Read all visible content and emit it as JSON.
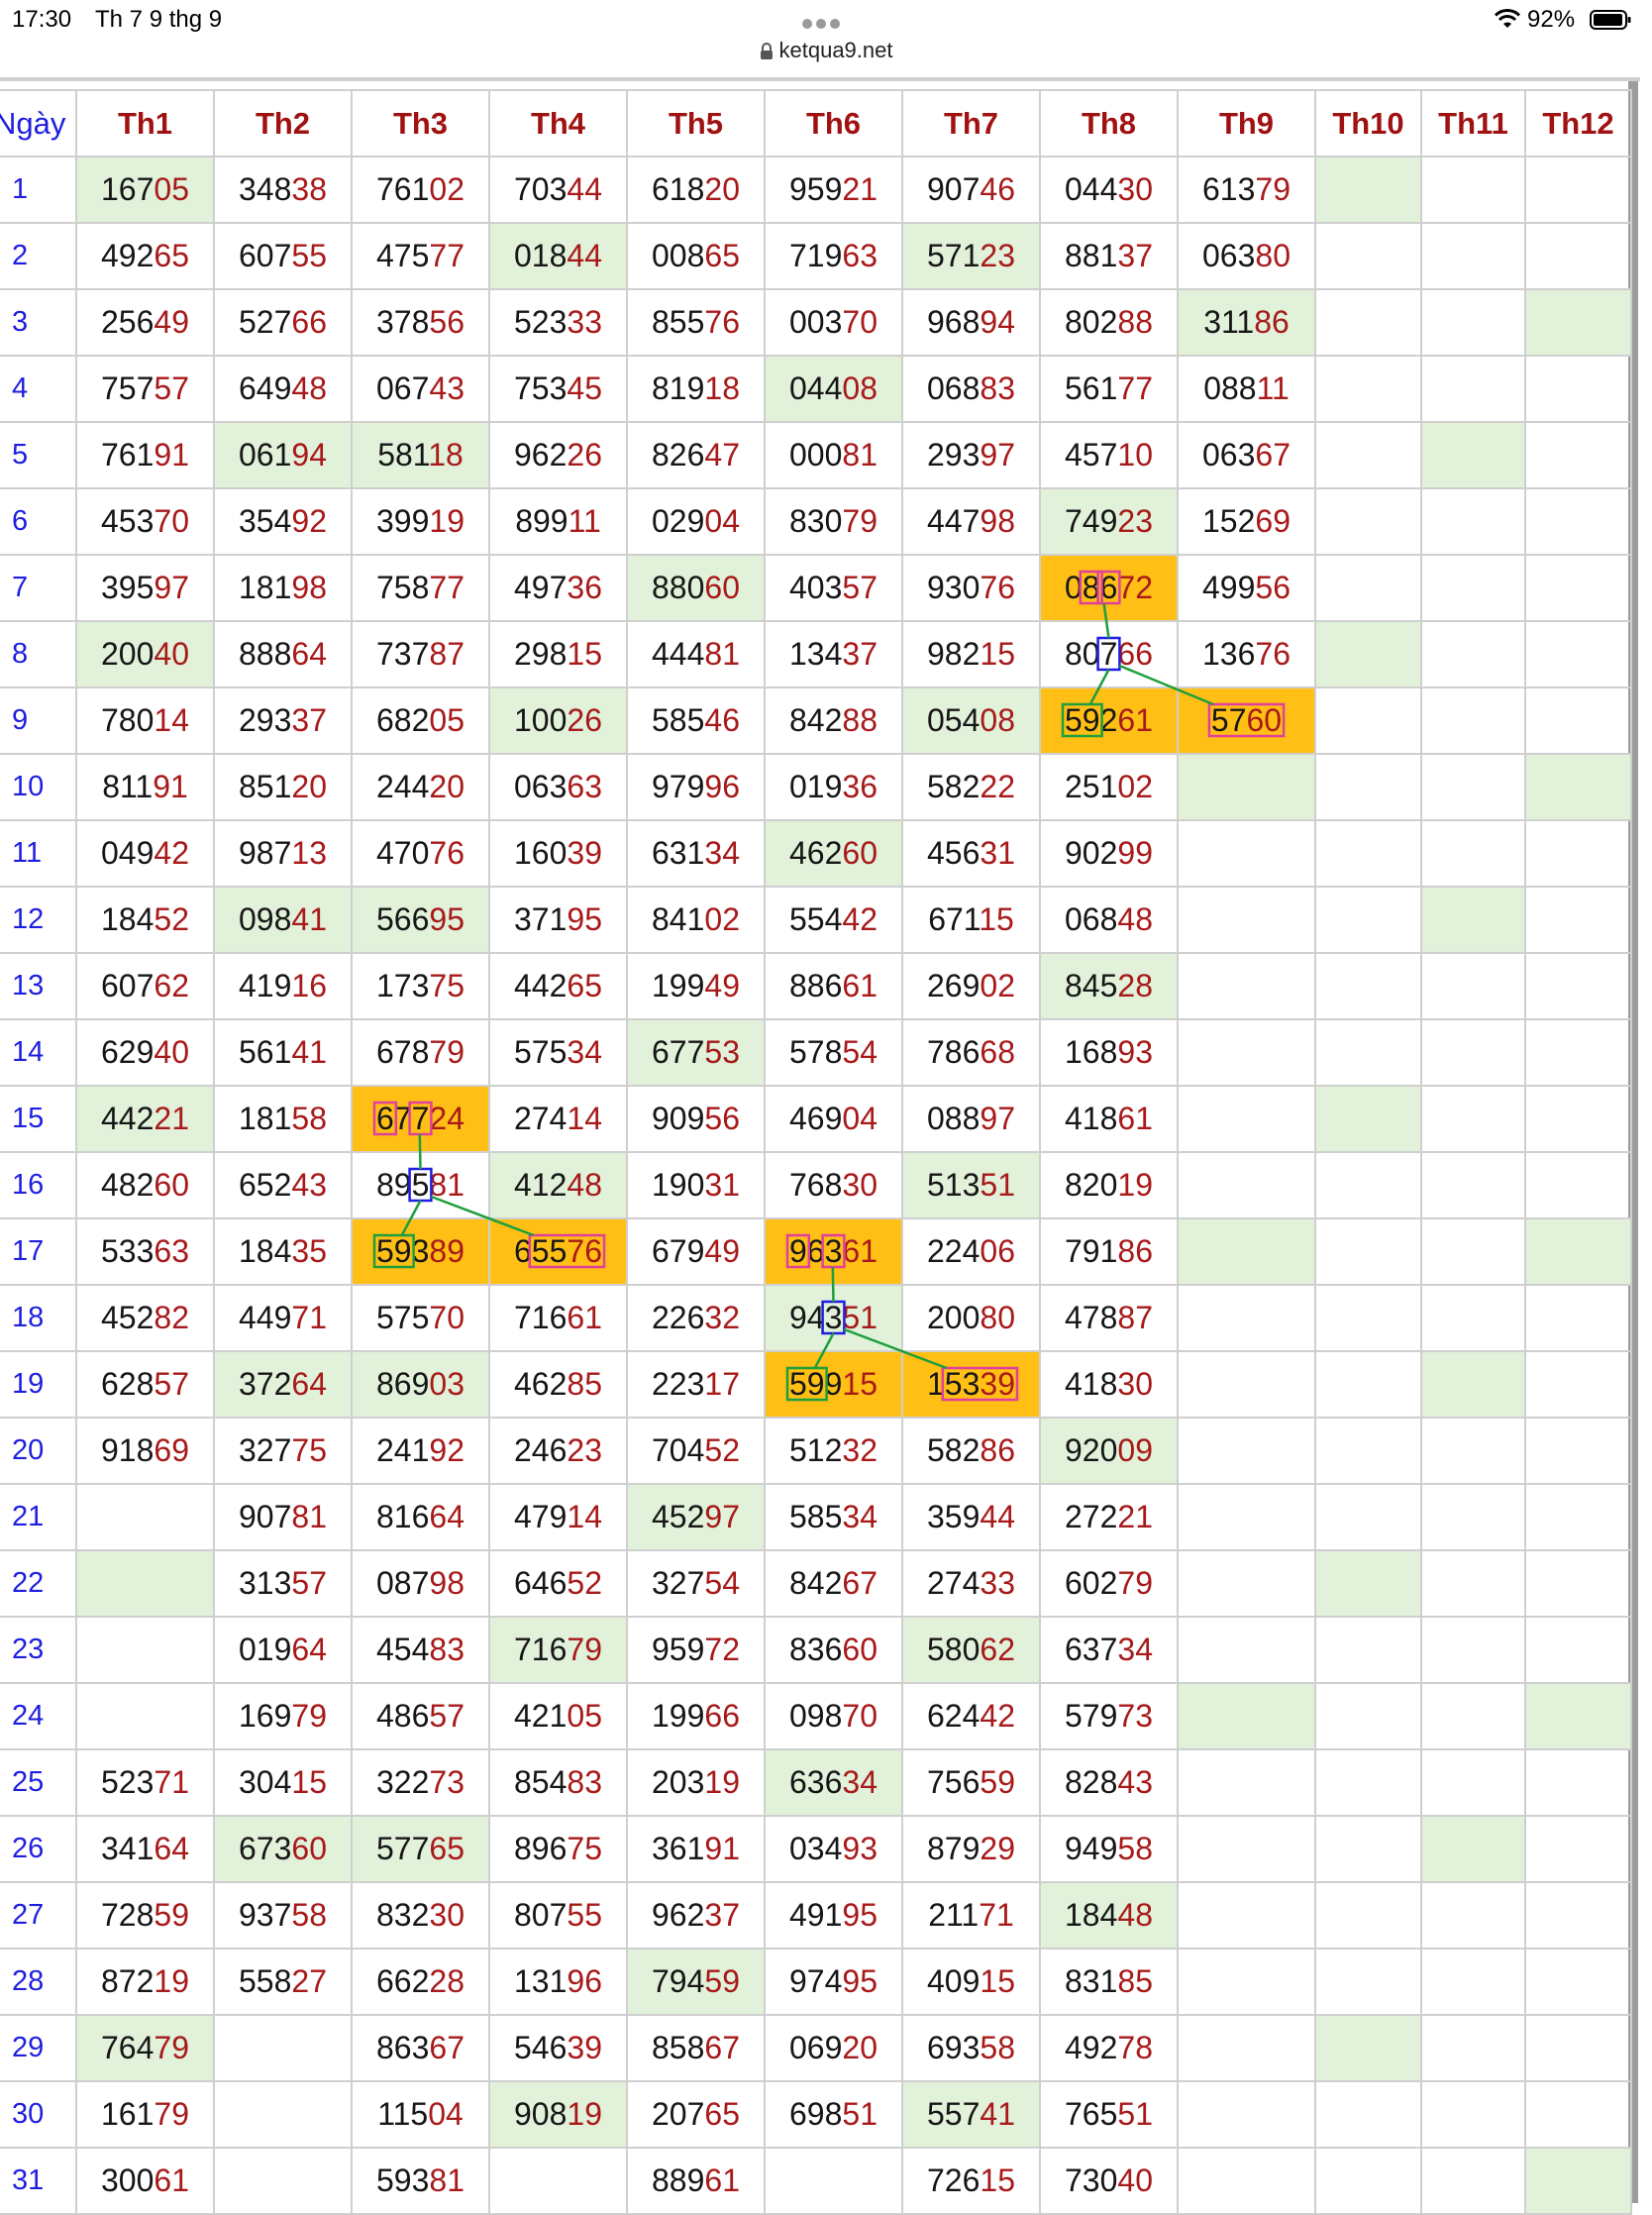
{
  "status_bar": {
    "time": "17:30",
    "date": "Th 7 9 thg 9",
    "battery": "92%",
    "icons": [
      "wifi-icon",
      "battery-icon",
      "more-dots-icon"
    ]
  },
  "browser": {
    "url": "ketqua9.net",
    "lock_icon": "lock-icon"
  },
  "table": {
    "headers": [
      "Ngày",
      "Th1",
      "Th2",
      "Th3",
      "Th4",
      "Th5",
      "Th6",
      "Th7",
      "Th8",
      "Th9",
      "Th10",
      "Th11",
      "Th12"
    ],
    "rows": [
      {
        "day": "1",
        "cells": [
          "16705",
          "34838",
          "76102",
          "70344",
          "61820",
          "95921",
          "90746",
          "04430",
          "61379",
          "",
          "",
          ""
        ]
      },
      {
        "day": "2",
        "cells": [
          "49265",
          "60755",
          "47577",
          "01844",
          "00865",
          "71963",
          "57123",
          "88137",
          "06380",
          "",
          "",
          ""
        ]
      },
      {
        "day": "3",
        "cells": [
          "25649",
          "52766",
          "37856",
          "52333",
          "85576",
          "00370",
          "96894",
          "80288",
          "31186",
          "",
          "",
          ""
        ]
      },
      {
        "day": "4",
        "cells": [
          "75757",
          "64948",
          "06743",
          "75345",
          "81918",
          "04408",
          "06883",
          "56177",
          "08811",
          "",
          "",
          ""
        ]
      },
      {
        "day": "5",
        "cells": [
          "76191",
          "06194",
          "58118",
          "96226",
          "82647",
          "00081",
          "29397",
          "45710",
          "06367",
          "",
          "",
          ""
        ]
      },
      {
        "day": "6",
        "cells": [
          "45370",
          "35492",
          "39919",
          "89911",
          "02904",
          "83079",
          "44798",
          "74923",
          "15269",
          "",
          "",
          ""
        ]
      },
      {
        "day": "7",
        "cells": [
          "39597",
          "18198",
          "75877",
          "49736",
          "88060",
          "40357",
          "93076",
          "08672",
          "49956",
          "",
          "",
          ""
        ]
      },
      {
        "day": "8",
        "cells": [
          "20040",
          "88864",
          "73787",
          "29815",
          "44481",
          "13437",
          "98215",
          "80766",
          "13676",
          "",
          "",
          ""
        ]
      },
      {
        "day": "9",
        "cells": [
          "78014",
          "29337",
          "68205",
          "10026",
          "58546",
          "84288",
          "05408",
          "59261",
          "5760",
          "",
          "",
          ""
        ]
      },
      {
        "day": "10",
        "cells": [
          "81191",
          "85120",
          "24420",
          "06363",
          "97996",
          "01936",
          "58222",
          "25102",
          "",
          "",
          "",
          ""
        ]
      },
      {
        "day": "11",
        "cells": [
          "04942",
          "98713",
          "47076",
          "16039",
          "63134",
          "46260",
          "45631",
          "90299",
          "",
          "",
          "",
          ""
        ]
      },
      {
        "day": "12",
        "cells": [
          "18452",
          "09841",
          "56695",
          "37195",
          "84102",
          "55442",
          "67115",
          "06848",
          "",
          "",
          "",
          ""
        ]
      },
      {
        "day": "13",
        "cells": [
          "60762",
          "41916",
          "17375",
          "44265",
          "19949",
          "88661",
          "26902",
          "84528",
          "",
          "",
          "",
          ""
        ]
      },
      {
        "day": "14",
        "cells": [
          "62940",
          "56141",
          "67879",
          "57534",
          "67753",
          "57854",
          "78668",
          "16893",
          "",
          "",
          "",
          ""
        ]
      },
      {
        "day": "15",
        "cells": [
          "44221",
          "18158",
          "67724",
          "27414",
          "90956",
          "46904",
          "08897",
          "41861",
          "",
          "",
          "",
          ""
        ]
      },
      {
        "day": "16",
        "cells": [
          "48260",
          "65243",
          "89581",
          "41248",
          "19031",
          "76830",
          "51351",
          "82019",
          "",
          "",
          "",
          ""
        ]
      },
      {
        "day": "17",
        "cells": [
          "53363",
          "18435",
          "59389",
          "65576",
          "67949",
          "96361",
          "22406",
          "79186",
          "",
          "",
          "",
          ""
        ]
      },
      {
        "day": "18",
        "cells": [
          "45282",
          "44971",
          "57570",
          "71661",
          "22632",
          "94351",
          "20080",
          "47887",
          "",
          "",
          "",
          ""
        ]
      },
      {
        "day": "19",
        "cells": [
          "62857",
          "37264",
          "86903",
          "46285",
          "22317",
          "59915",
          "15339",
          "41830",
          "",
          "",
          "",
          ""
        ]
      },
      {
        "day": "20",
        "cells": [
          "91869",
          "32775",
          "24192",
          "24623",
          "70452",
          "51232",
          "58286",
          "92009",
          "",
          "",
          "",
          ""
        ]
      },
      {
        "day": "21",
        "cells": [
          "",
          "90781",
          "81664",
          "47914",
          "45297",
          "58534",
          "35944",
          "27221",
          "",
          "",
          "",
          ""
        ]
      },
      {
        "day": "22",
        "cells": [
          "",
          "31357",
          "08798",
          "64652",
          "32754",
          "84267",
          "27433",
          "60279",
          "",
          "",
          "",
          ""
        ]
      },
      {
        "day": "23",
        "cells": [
          "",
          "01964",
          "45483",
          "71679",
          "95972",
          "83660",
          "58062",
          "63734",
          "",
          "",
          "",
          ""
        ]
      },
      {
        "day": "24",
        "cells": [
          "",
          "16979",
          "48657",
          "42105",
          "19966",
          "09870",
          "62442",
          "57973",
          "",
          "",
          "",
          ""
        ]
      },
      {
        "day": "25",
        "cells": [
          "52371",
          "30415",
          "32273",
          "85483",
          "20319",
          "63634",
          "75659",
          "82843",
          "",
          "",
          "",
          ""
        ]
      },
      {
        "day": "26",
        "cells": [
          "34164",
          "67360",
          "57765",
          "89675",
          "36191",
          "03493",
          "87929",
          "94958",
          "",
          "",
          "",
          ""
        ]
      },
      {
        "day": "27",
        "cells": [
          "72859",
          "93758",
          "83230",
          "80755",
          "96237",
          "49195",
          "21171",
          "18448",
          "",
          "",
          "",
          ""
        ]
      },
      {
        "day": "28",
        "cells": [
          "87219",
          "55827",
          "66228",
          "13196",
          "79459",
          "97495",
          "40915",
          "83185",
          "",
          "",
          "",
          ""
        ]
      },
      {
        "day": "29",
        "cells": [
          "76479",
          "",
          "86367",
          "54639",
          "85867",
          "06920",
          "69358",
          "49278",
          "",
          "",
          "",
          ""
        ]
      },
      {
        "day": "30",
        "cells": [
          "16179",
          "",
          "11504",
          "90819",
          "20765",
          "69851",
          "55741",
          "76551",
          "",
          "",
          "",
          ""
        ]
      },
      {
        "day": "31",
        "cells": [
          "30061",
          "",
          "59381",
          "",
          "88961",
          "",
          "72615",
          "73040",
          "",
          "",
          "",
          ""
        ]
      }
    ],
    "green_cells": [
      [
        1,
        1
      ],
      [
        1,
        10
      ],
      [
        2,
        4
      ],
      [
        2,
        7
      ],
      [
        3,
        9
      ],
      [
        3,
        12
      ],
      [
        4,
        6
      ],
      [
        5,
        2
      ],
      [
        5,
        3
      ],
      [
        5,
        11
      ],
      [
        6,
        8
      ],
      [
        7,
        5
      ],
      [
        8,
        1
      ],
      [
        8,
        10
      ],
      [
        9,
        4
      ],
      [
        9,
        7
      ],
      [
        10,
        9
      ],
      [
        10,
        12
      ],
      [
        11,
        6
      ],
      [
        12,
        2
      ],
      [
        12,
        3
      ],
      [
        12,
        11
      ],
      [
        13,
        8
      ],
      [
        14,
        5
      ],
      [
        15,
        1
      ],
      [
        15,
        10
      ],
      [
        16,
        4
      ],
      [
        16,
        7
      ],
      [
        17,
        9
      ],
      [
        17,
        12
      ],
      [
        18,
        6
      ],
      [
        19,
        2
      ],
      [
        19,
        3
      ],
      [
        19,
        11
      ],
      [
        20,
        8
      ],
      [
        21,
        5
      ],
      [
        22,
        1
      ],
      [
        22,
        10
      ],
      [
        23,
        4
      ],
      [
        23,
        7
      ],
      [
        24,
        9
      ],
      [
        24,
        12
      ],
      [
        25,
        6
      ],
      [
        26,
        2
      ],
      [
        26,
        3
      ],
      [
        26,
        11
      ],
      [
        27,
        8
      ],
      [
        28,
        5
      ],
      [
        29,
        1
      ],
      [
        29,
        10
      ],
      [
        30,
        4
      ],
      [
        30,
        7
      ],
      [
        31,
        12
      ]
    ],
    "orange_cells": [
      [
        7,
        8
      ],
      [
        9,
        8
      ],
      [
        9,
        9
      ],
      [
        15,
        3
      ],
      [
        17,
        3
      ],
      [
        17,
        4
      ],
      [
        17,
        6
      ],
      [
        19,
        6
      ],
      [
        19,
        7
      ]
    ],
    "colors": {
      "header_text": "#a01212",
      "day_text": "#1e1ee0",
      "tail_digits": "#a81a1a",
      "green_highlight": "#e1f1da",
      "orange_highlight": "#ffbf14",
      "mark_pink": "#e0409c",
      "mark_blue": "#1e1ee0",
      "mark_green": "#1e9e3c",
      "connector_line": "#1e9e3c"
    }
  }
}
